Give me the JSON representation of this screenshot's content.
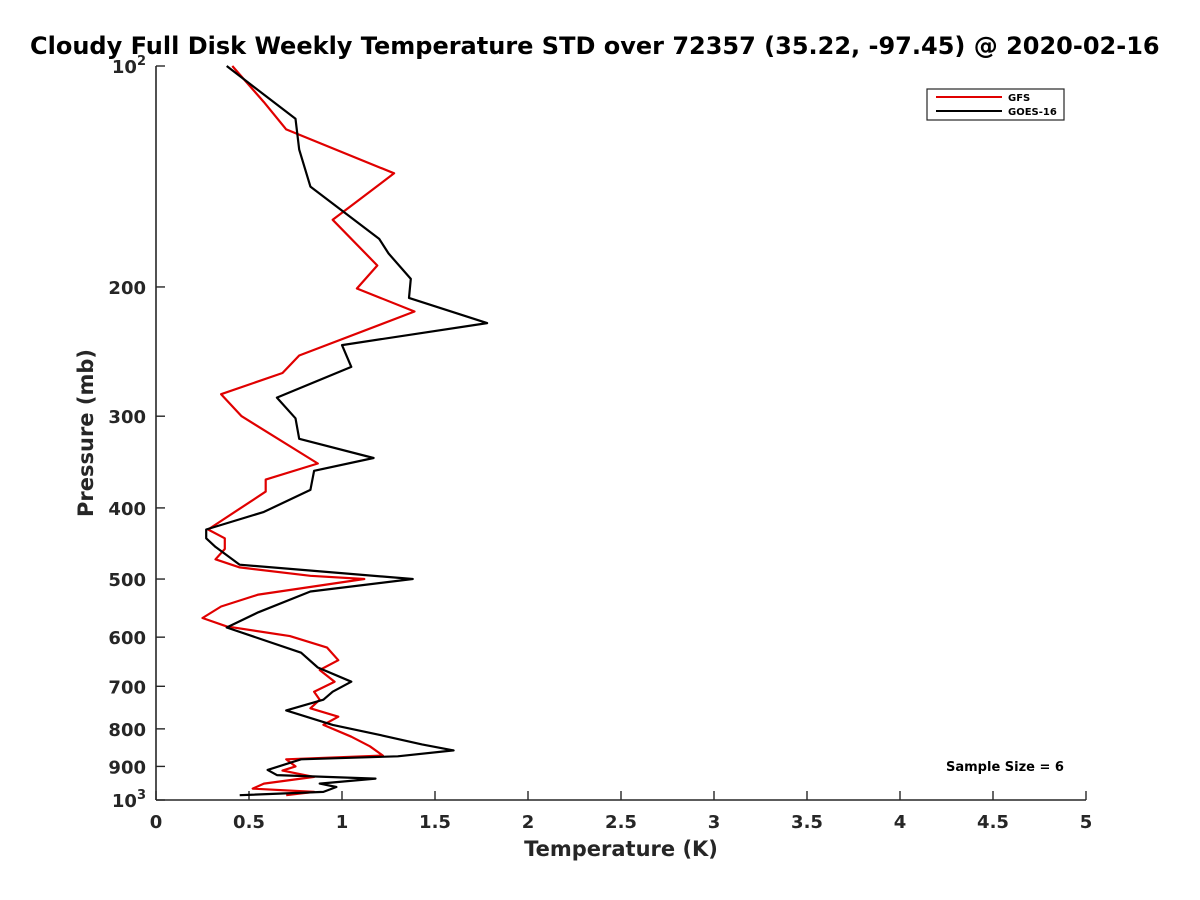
{
  "chart_data": {
    "type": "line",
    "title": "Cloudy Full Disk Weekly Temperature STD over 72357 (35.22, -97.45) @ 2020-02-16",
    "xlabel": "Temperature (K)",
    "ylabel": "Pressure (mb)",
    "xlim": [
      0,
      5
    ],
    "ylim": [
      100,
      1000
    ],
    "y_scale": "log",
    "y_reversed": true,
    "x_ticks": [
      0,
      0.5,
      1,
      1.5,
      2,
      2.5,
      3,
      3.5,
      4,
      4.5,
      5
    ],
    "x_tick_labels": [
      "0",
      "0.5",
      "1",
      "1.5",
      "2",
      "2.5",
      "3",
      "3.5",
      "4",
      "4.5",
      "5"
    ],
    "y_ticks": [
      100,
      200,
      300,
      400,
      500,
      600,
      700,
      800,
      900,
      1000
    ],
    "y_tick_labels": [
      {
        "base": "10",
        "sup": "2"
      },
      {
        "base": "200",
        "sup": ""
      },
      {
        "base": "300",
        "sup": ""
      },
      {
        "base": "400",
        "sup": ""
      },
      {
        "base": "500",
        "sup": ""
      },
      {
        "base": "600",
        "sup": ""
      },
      {
        "base": "700",
        "sup": ""
      },
      {
        "base": "800",
        "sup": ""
      },
      {
        "base": "900",
        "sup": ""
      },
      {
        "base": "10",
        "sup": "3"
      }
    ],
    "grid": false,
    "legend_position": "top-right",
    "annotation": "Sample Size = 6",
    "series": [
      {
        "name": "GFS",
        "color": "#e00000",
        "points": [
          [
            0.41,
            100
          ],
          [
            0.58,
            112
          ],
          [
            0.7,
            122
          ],
          [
            1.28,
            140
          ],
          [
            1.05,
            155
          ],
          [
            0.95,
            162
          ],
          [
            1.19,
            187
          ],
          [
            1.08,
            201
          ],
          [
            1.39,
            216
          ],
          [
            0.77,
            248
          ],
          [
            0.68,
            262
          ],
          [
            0.35,
            280
          ],
          [
            0.46,
            300
          ],
          [
            0.87,
            348
          ],
          [
            0.59,
            366
          ],
          [
            0.59,
            380
          ],
          [
            0.28,
            428
          ],
          [
            0.37,
            440
          ],
          [
            0.37,
            455
          ],
          [
            0.32,
            470
          ],
          [
            0.45,
            482
          ],
          [
            0.83,
            495
          ],
          [
            1.12,
            500
          ],
          [
            0.55,
            525
          ],
          [
            0.35,
            545
          ],
          [
            0.25,
            565
          ],
          [
            0.38,
            580
          ],
          [
            0.72,
            598
          ],
          [
            0.92,
            620
          ],
          [
            0.98,
            645
          ],
          [
            0.88,
            665
          ],
          [
            0.96,
            690
          ],
          [
            0.85,
            712
          ],
          [
            0.88,
            730
          ],
          [
            0.83,
            750
          ],
          [
            0.98,
            770
          ],
          [
            0.9,
            790
          ],
          [
            1.05,
            820
          ],
          [
            1.15,
            845
          ],
          [
            1.22,
            870
          ],
          [
            0.7,
            880
          ],
          [
            0.75,
            900
          ],
          [
            0.68,
            912
          ],
          [
            0.85,
            930
          ],
          [
            0.58,
            950
          ],
          [
            0.52,
            965
          ],
          [
            0.85,
            975
          ],
          [
            0.7,
            985
          ]
        ]
      },
      {
        "name": "GOES-16",
        "color": "#000000",
        "points": [
          [
            0.38,
            100
          ],
          [
            0.75,
            118
          ],
          [
            0.77,
            130
          ],
          [
            0.83,
            146
          ],
          [
            1.2,
            172
          ],
          [
            1.25,
            180
          ],
          [
            1.37,
            195
          ],
          [
            1.36,
            207
          ],
          [
            1.78,
            224
          ],
          [
            1.0,
            240
          ],
          [
            1.05,
            257
          ],
          [
            0.65,
            283
          ],
          [
            0.75,
            302
          ],
          [
            0.77,
            322
          ],
          [
            1.17,
            342
          ],
          [
            0.85,
            356
          ],
          [
            0.83,
            378
          ],
          [
            0.58,
            405
          ],
          [
            0.27,
            428
          ],
          [
            0.27,
            440
          ],
          [
            0.32,
            452
          ],
          [
            0.45,
            478
          ],
          [
            1.38,
            500
          ],
          [
            0.83,
            520
          ],
          [
            0.55,
            555
          ],
          [
            0.38,
            582
          ],
          [
            0.78,
            630
          ],
          [
            0.87,
            660
          ],
          [
            1.05,
            690
          ],
          [
            0.95,
            712
          ],
          [
            0.9,
            730
          ],
          [
            0.7,
            755
          ],
          [
            0.95,
            790
          ],
          [
            1.2,
            815
          ],
          [
            1.43,
            840
          ],
          [
            1.6,
            856
          ],
          [
            1.3,
            872
          ],
          [
            0.78,
            880
          ],
          [
            0.6,
            910
          ],
          [
            0.65,
            925
          ],
          [
            1.18,
            935
          ],
          [
            0.88,
            950
          ],
          [
            0.97,
            960
          ],
          [
            0.9,
            975
          ],
          [
            0.45,
            985
          ]
        ]
      }
    ]
  }
}
